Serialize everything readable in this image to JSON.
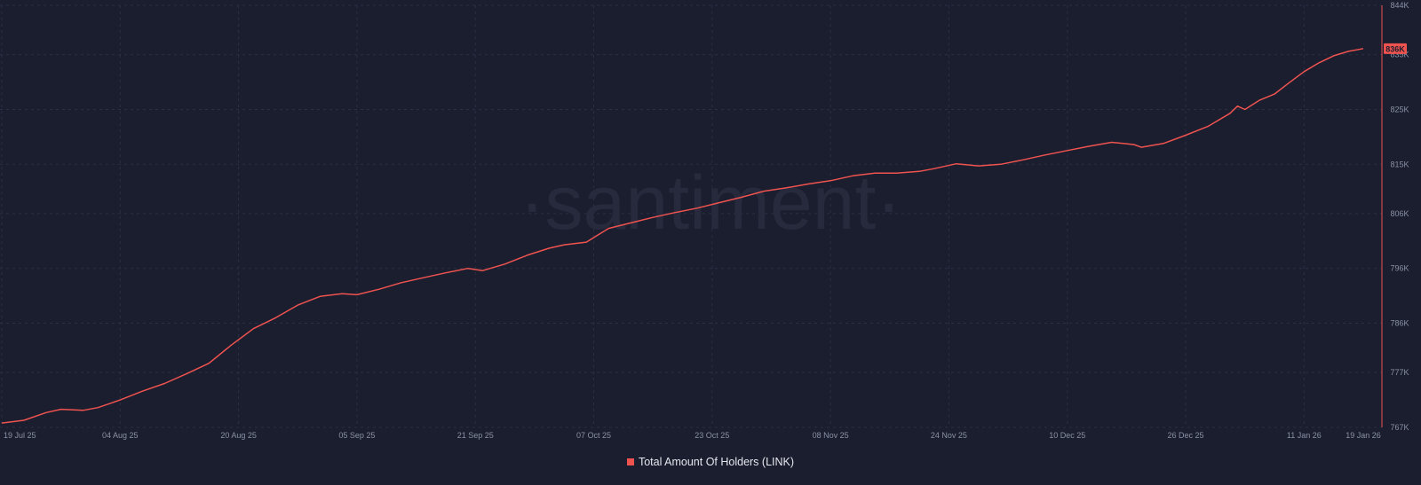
{
  "watermark": "·santiment·",
  "colors": {
    "background": "#1b1e2e",
    "series": "#ef5350",
    "grid": "#2a2f45",
    "axis_text": "#8a91a6",
    "badge_text": "#1b1e2e"
  },
  "chart_data": {
    "type": "line",
    "title": "",
    "xlabel": "",
    "ylabel": "",
    "grid": true,
    "legend_position": "bottom-center",
    "x_tick_labels": [
      "19 Jul 25",
      "04 Aug 25",
      "20 Aug 25",
      "05 Sep 25",
      "21 Sep 25",
      "07 Oct 25",
      "23 Oct 25",
      "08 Nov 25",
      "24 Nov 25",
      "10 Dec 25",
      "26 Dec 25",
      "11 Jan 26",
      "19 Jan 26"
    ],
    "y_tick_labels": [
      "767K",
      "777K",
      "786K",
      "796K",
      "806K",
      "815K",
      "825K",
      "835K",
      "844K"
    ],
    "y_tick_values": [
      767000,
      777000,
      786000,
      796000,
      806000,
      815000,
      825000,
      835000,
      844000
    ],
    "ylim": [
      767000,
      844000
    ],
    "last_value_badge": "836K",
    "series": [
      {
        "name": "Total Amount Of Holders (LINK)",
        "color": "#ef5350",
        "x": [
          "2025-07-19",
          "2025-07-22",
          "2025-07-25",
          "2025-07-27",
          "2025-07-30",
          "2025-08-01",
          "2025-08-04",
          "2025-08-07",
          "2025-08-10",
          "2025-08-13",
          "2025-08-16",
          "2025-08-19",
          "2025-08-22",
          "2025-08-25",
          "2025-08-28",
          "2025-08-31",
          "2025-09-03",
          "2025-09-05",
          "2025-09-08",
          "2025-09-11",
          "2025-09-14",
          "2025-09-17",
          "2025-09-20",
          "2025-09-22",
          "2025-09-25",
          "2025-09-28",
          "2025-10-01",
          "2025-10-03",
          "2025-10-06",
          "2025-10-09",
          "2025-10-12",
          "2025-10-15",
          "2025-10-18",
          "2025-10-21",
          "2025-10-24",
          "2025-10-27",
          "2025-10-30",
          "2025-11-02",
          "2025-11-05",
          "2025-11-08",
          "2025-11-11",
          "2025-11-14",
          "2025-11-17",
          "2025-11-20",
          "2025-11-22",
          "2025-11-25",
          "2025-11-28",
          "2025-12-01",
          "2025-12-04",
          "2025-12-07",
          "2025-12-10",
          "2025-12-13",
          "2025-12-16",
          "2025-12-19",
          "2025-12-20",
          "2025-12-23",
          "2025-12-26",
          "2025-12-29",
          "2026-01-01",
          "2026-01-02",
          "2026-01-03",
          "2026-01-05",
          "2026-01-07",
          "2026-01-09",
          "2026-01-11",
          "2026-01-13",
          "2026-01-15",
          "2026-01-17",
          "2026-01-19"
        ],
        "values": [
          767800,
          768300,
          769700,
          770300,
          770100,
          770600,
          772000,
          773600,
          775000,
          776800,
          778700,
          782000,
          785000,
          787000,
          789300,
          790900,
          791400,
          791200,
          792200,
          793400,
          794300,
          795200,
          796000,
          795600,
          796800,
          798400,
          799700,
          800300,
          800800,
          803300,
          804300,
          805300,
          806200,
          807000,
          808000,
          809000,
          810100,
          810700,
          811400,
          812000,
          812900,
          813400,
          813400,
          813700,
          814200,
          815100,
          814700,
          815000,
          815800,
          816700,
          817500,
          818300,
          819000,
          818600,
          818100,
          818800,
          820300,
          821900,
          824300,
          825600,
          825000,
          826700,
          827800,
          829900,
          831900,
          833500,
          834800,
          835600,
          836100
        ]
      }
    ]
  }
}
